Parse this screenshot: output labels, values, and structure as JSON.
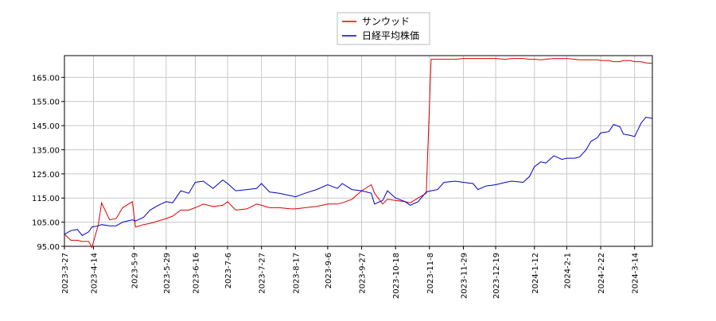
{
  "chart_data": {
    "type": "line",
    "x": [
      "2023-3-27",
      "2023-3-31",
      "2023-4-4",
      "2023-4-7",
      "2023-4-11",
      "2023-4-13",
      "2023-4-17",
      "2023-4-19",
      "2023-4-24",
      "2023-4-28",
      "2023-5-2",
      "2023-5-8",
      "2023-5-10",
      "2023-5-15",
      "2023-5-19",
      "2023-5-24",
      "2023-5-29",
      "2023-6-2",
      "2023-6-7",
      "2023-6-12",
      "2023-6-16",
      "2023-6-21",
      "2023-6-27",
      "2023-7-3",
      "2023-7-6",
      "2023-7-11",
      "2023-7-18",
      "2023-7-24",
      "2023-7-27",
      "2023-8-1",
      "2023-8-7",
      "2023-8-14",
      "2023-8-17",
      "2023-8-23",
      "2023-8-30",
      "2023-9-6",
      "2023-9-12",
      "2023-9-15",
      "2023-9-21",
      "2023-9-27",
      "2023-10-3",
      "2023-10-5",
      "2023-10-10",
      "2023-10-13",
      "2023-10-18",
      "2023-10-24",
      "2023-10-27",
      "2023-11-1",
      "2023-11-6",
      "2023-11-9",
      "2023-11-13",
      "2023-11-17",
      "2023-11-24",
      "2023-11-29",
      "2023-12-5",
      "2023-12-8",
      "2023-12-13",
      "2023-12-19",
      "2023-12-25",
      "2023-12-29",
      "2024-1-5",
      "2024-1-9",
      "2024-1-12",
      "2024-1-16",
      "2024-1-19",
      "2024-1-24",
      "2024-1-29",
      "2024-2-1",
      "2024-2-6",
      "2024-2-9",
      "2024-2-13",
      "2024-2-16",
      "2024-2-20",
      "2024-2-22",
      "2024-2-27",
      "2024-3-1",
      "2024-3-5",
      "2024-3-7",
      "2024-3-11",
      "2024-3-14",
      "2024-3-18",
      "2024-3-21",
      "2024-3-25"
    ],
    "series": [
      {
        "name": "サンウッド",
        "color": "#dd0000",
        "values": [
          100,
          97.5,
          97.5,
          97,
          97,
          94.5,
          104,
          113,
          106,
          106.5,
          111,
          113.5,
          103,
          104,
          104.5,
          105.5,
          106.5,
          107.5,
          110,
          110,
          111,
          112.5,
          111.5,
          112,
          113.5,
          110,
          110.5,
          112.5,
          112,
          111,
          111,
          110.5,
          110.5,
          111,
          111.5,
          112.5,
          112.5,
          113,
          114.5,
          118,
          120.5,
          117,
          112.5,
          114.5,
          114,
          113.5,
          113,
          115,
          117,
          172.5,
          172.5,
          172.5,
          172.5,
          172.8,
          172.8,
          172.8,
          172.8,
          172.8,
          172.5,
          172.8,
          172.8,
          172.5,
          172.5,
          172.3,
          172.5,
          172.8,
          172.8,
          172.8,
          172.5,
          172.3,
          172.3,
          172.3,
          172.3,
          172,
          172,
          171.5,
          171.5,
          172,
          172,
          171.5,
          171.5,
          171,
          170.8
        ]
      },
      {
        "name": "日経平均株価",
        "color": "#0000cc",
        "values": [
          100,
          101.5,
          102,
          99.5,
          101,
          103,
          103.5,
          104,
          103.5,
          103.5,
          105,
          106,
          105.5,
          107,
          110,
          112,
          113.5,
          113,
          118,
          117,
          121.5,
          122,
          119,
          122.5,
          121,
          118,
          118.5,
          119,
          121,
          117.5,
          117,
          116,
          115.5,
          117,
          118.5,
          120.5,
          119,
          121,
          118.5,
          118,
          117,
          112.5,
          114,
          118,
          115,
          113.5,
          112,
          113.5,
          117.5,
          118,
          118.5,
          121.5,
          122,
          121.5,
          121,
          118.5,
          120,
          120.5,
          121.5,
          122,
          121.5,
          124,
          128,
          130,
          129.5,
          132.5,
          131,
          131.5,
          131.5,
          132,
          135,
          138.5,
          140,
          142,
          142.5,
          145.5,
          144.5,
          141.5,
          141,
          140.5,
          146,
          148.5,
          148
        ]
      }
    ],
    "xlim": [
      "2023-3-27",
      "2024-3-25"
    ],
    "xticks": [
      "2023-3-27",
      "2023-4-14",
      "2023-5-9",
      "2023-5-29",
      "2023-6-16",
      "2023-7-6",
      "2023-7-27",
      "2023-8-17",
      "2023-9-6",
      "2023-9-27",
      "2023-10-18",
      "2023-11-8",
      "2023-11-29",
      "2023-12-19",
      "2024-1-12",
      "2024-2-1",
      "2024-2-22",
      "2024-3-14"
    ],
    "ylim": [
      95,
      174
    ],
    "yticks": [
      {
        "value": 95,
        "label": "95.00"
      },
      {
        "value": 105,
        "label": "105.00"
      },
      {
        "value": 115,
        "label": "115.00"
      },
      {
        "value": 125,
        "label": "125.00"
      },
      {
        "value": 135,
        "label": "135.00"
      },
      {
        "value": 145,
        "label": "145.00"
      },
      {
        "value": 155,
        "label": "155.00"
      },
      {
        "value": 165,
        "label": "165.00"
      }
    ],
    "grid": true,
    "legend": "top"
  }
}
